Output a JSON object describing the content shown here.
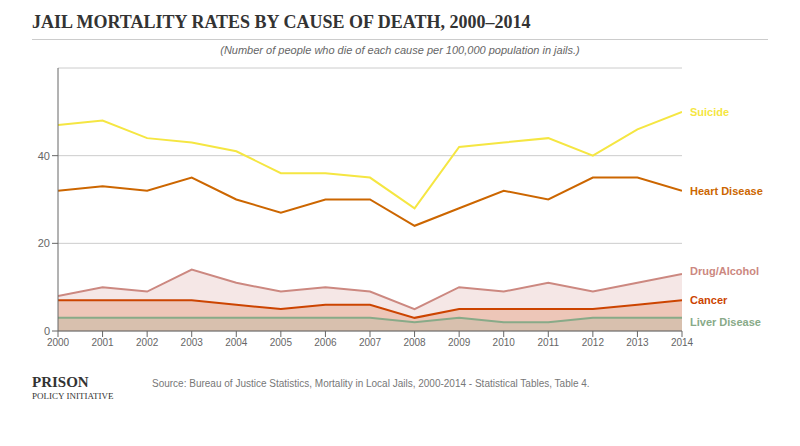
{
  "chart_data": {
    "type": "line",
    "title": "JAIL MORTALITY RATES BY CAUSE OF DEATH, 2000–2014",
    "subtitle": "(Number of people who die of each cause per 100,000 population in jails.)",
    "annotations": [
      "PRISON",
      "POLICY INITIATIVE",
      "Source: Bureau of Justice Statistics, Mortality in Local Jails, 2000-2014 - Statistical Tables, Table 4."
    ],
    "x": [
      2000,
      2001,
      2002,
      2003,
      2004,
      2005,
      2006,
      2007,
      2008,
      2009,
      2010,
      2011,
      2012,
      2013,
      2014
    ],
    "series": [
      {
        "name": "Suicide",
        "color": "#f5e642",
        "type": "line",
        "values": [
          47,
          48,
          44,
          43,
          41,
          36,
          36,
          35,
          28,
          42,
          43,
          44,
          40,
          46,
          50
        ]
      },
      {
        "name": "Heart Disease",
        "color": "#cc6600",
        "type": "line",
        "values": [
          32,
          33,
          32,
          35,
          30,
          27,
          30,
          30,
          24,
          28,
          32,
          30,
          35,
          35,
          32
        ]
      },
      {
        "name": "Drug/Alcohol",
        "color": "#cc8880",
        "type": "area",
        "values": [
          8,
          10,
          9,
          14,
          11,
          9,
          10,
          9,
          5,
          10,
          9,
          11,
          9,
          11,
          13
        ]
      },
      {
        "name": "Cancer",
        "color": "#cc4400",
        "type": "area",
        "values": [
          7,
          7,
          7,
          7,
          6,
          5,
          6,
          6,
          3,
          5,
          5,
          5,
          5,
          6,
          7
        ]
      },
      {
        "name": "Liver Disease",
        "color": "#88aa88",
        "type": "area",
        "values": [
          3,
          3,
          3,
          3,
          3,
          3,
          3,
          3,
          2,
          3,
          2,
          2,
          3,
          3,
          3
        ]
      }
    ],
    "xlim": [
      2000,
      2014
    ],
    "xticks": [
      2000,
      2001,
      2002,
      2003,
      2004,
      2005,
      2006,
      2007,
      2008,
      2009,
      2010,
      2011,
      2012,
      2013,
      2014
    ],
    "ylim": [
      0,
      60
    ],
    "yticks": [
      0,
      20,
      40
    ],
    "grid": true
  }
}
